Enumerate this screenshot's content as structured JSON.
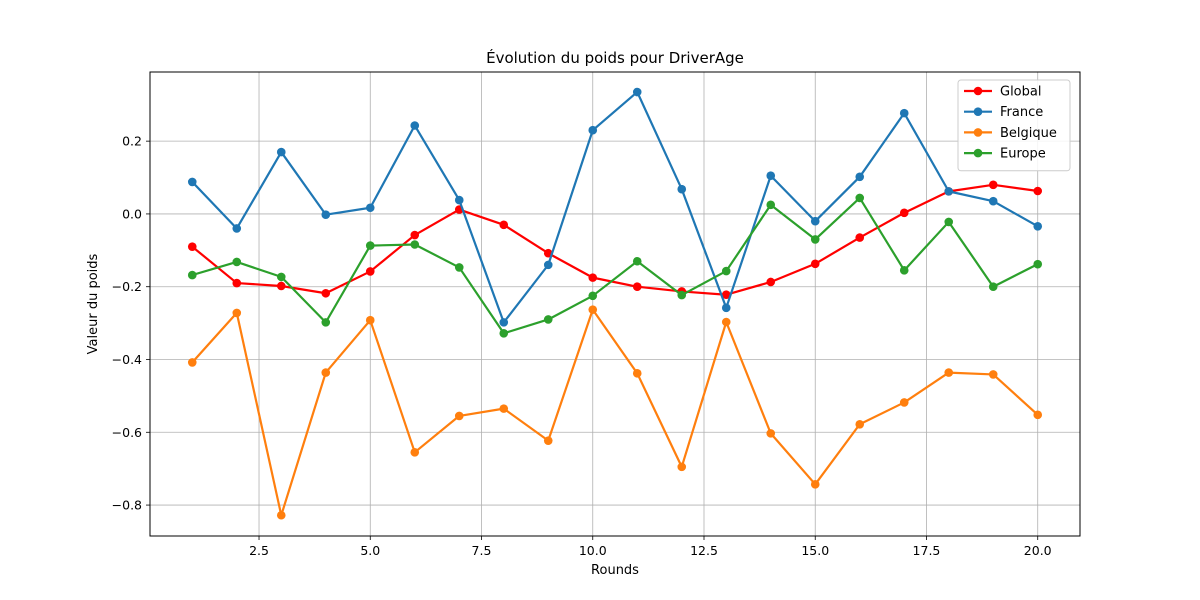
{
  "chart_data": {
    "type": "line",
    "title": "Évolution du poids pour DriverAge",
    "xlabel": "Rounds",
    "ylabel": "Valeur du poids",
    "xlim": [
      0.05,
      20.95
    ],
    "ylim": [
      -0.885,
      0.39
    ],
    "x_ticks": [
      2.5,
      5.0,
      7.5,
      10.0,
      12.5,
      15.0,
      17.5,
      20.0
    ],
    "x_tick_labels": [
      "2.5",
      "5.0",
      "7.5",
      "10.0",
      "12.5",
      "15.0",
      "17.5",
      "20.0"
    ],
    "y_ticks": [
      -0.8,
      -0.6,
      -0.4,
      -0.2,
      0.0,
      0.2
    ],
    "y_tick_labels": [
      "−0.8",
      "−0.6",
      "−0.4",
      "−0.2",
      "0.0",
      "0.2"
    ],
    "grid": true,
    "legend_position": "top-right",
    "x": [
      1,
      2,
      3,
      4,
      5,
      6,
      7,
      8,
      9,
      10,
      11,
      12,
      13,
      14,
      15,
      16,
      17,
      18,
      19,
      20
    ],
    "series": [
      {
        "name": "Global",
        "color": "#ff0000",
        "values": [
          -0.09,
          -0.19,
          -0.198,
          -0.218,
          -0.158,
          -0.058,
          0.012,
          -0.03,
          -0.108,
          -0.175,
          -0.2,
          -0.213,
          -0.222,
          -0.187,
          -0.137,
          -0.065,
          0.003,
          0.062,
          0.08,
          0.063
        ]
      },
      {
        "name": "France",
        "color": "#1f77b4",
        "values": [
          0.088,
          -0.04,
          0.17,
          -0.002,
          0.017,
          0.243,
          0.038,
          -0.298,
          -0.14,
          0.23,
          0.335,
          0.068,
          -0.258,
          0.105,
          -0.02,
          0.102,
          0.277,
          0.062,
          0.035,
          -0.034
        ]
      },
      {
        "name": "Belgique",
        "color": "#ff7f0e",
        "values": [
          -0.408,
          -0.272,
          -0.828,
          -0.436,
          -0.292,
          -0.655,
          -0.555,
          -0.535,
          -0.623,
          -0.263,
          -0.438,
          -0.695,
          -0.297,
          -0.603,
          -0.743,
          -0.578,
          -0.518,
          -0.436,
          -0.441,
          -0.552
        ]
      },
      {
        "name": "Europe",
        "color": "#2ca02c",
        "values": [
          -0.168,
          -0.132,
          -0.173,
          -0.298,
          -0.087,
          -0.084,
          -0.147,
          -0.328,
          -0.29,
          -0.225,
          -0.13,
          -0.223,
          -0.157,
          0.025,
          -0.07,
          0.044,
          -0.155,
          -0.022,
          -0.2,
          -0.138
        ]
      }
    ]
  }
}
